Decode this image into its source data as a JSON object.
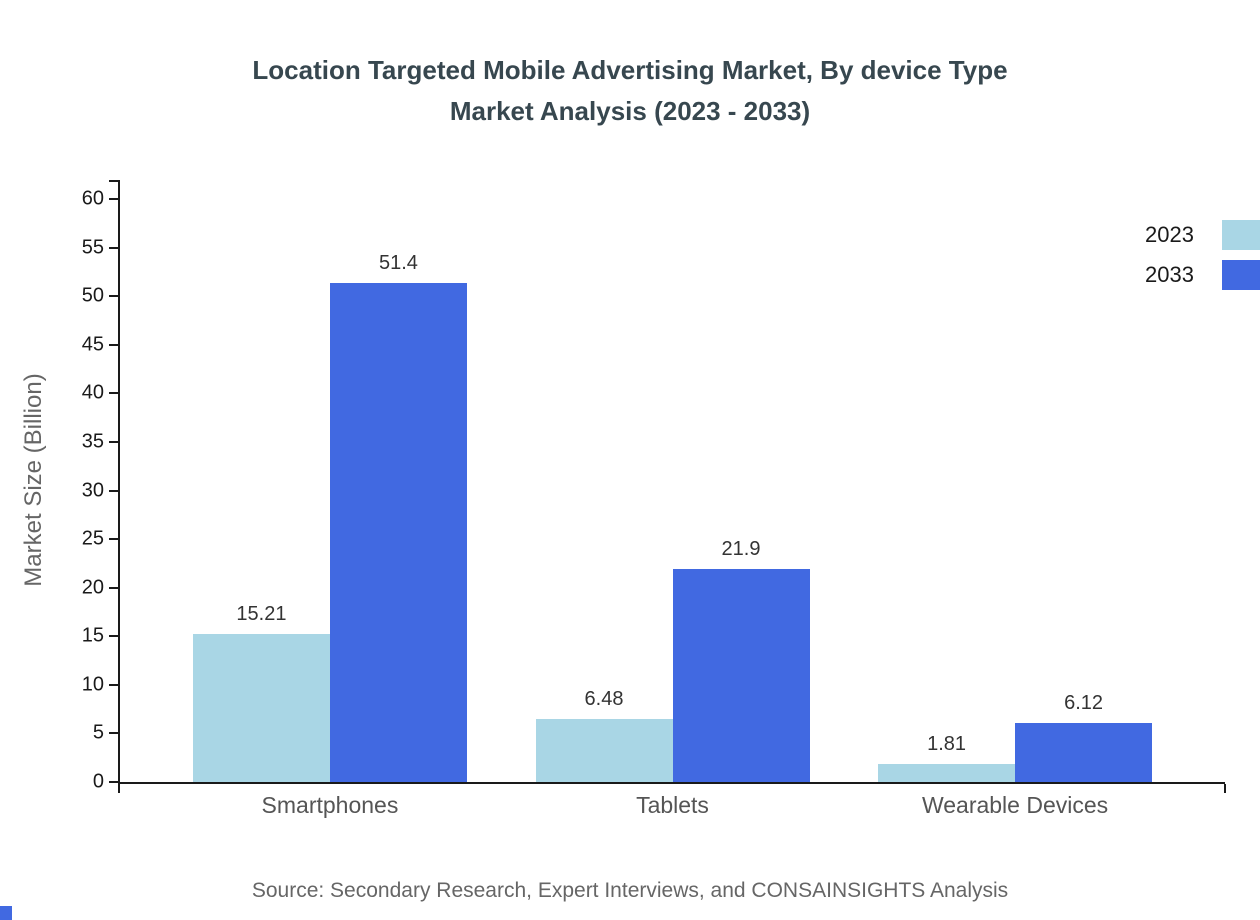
{
  "chart": {
    "title_line1": "Location Targeted Mobile Advertising Market, By device Type",
    "title_line2": "Market Analysis (2023 - 2033)",
    "ylabel": "Market Size (Billion)",
    "source": "Source: Secondary Research, Expert Interviews, and CONSAINSIGHTS Analysis"
  },
  "chart_data": {
    "type": "bar",
    "title": "Location Targeted Mobile Advertising Market, By device Type Market Analysis (2023 - 2033)",
    "categories": [
      "Smartphones",
      "Tablets",
      "Wearable Devices"
    ],
    "series": [
      {
        "name": "2023",
        "color": "#a9d6e5",
        "values": [
          15.21,
          6.48,
          1.81
        ]
      },
      {
        "name": "2033",
        "color": "#4169e1",
        "values": [
          51.4,
          21.9,
          6.12
        ]
      }
    ],
    "xlabel": "",
    "ylabel": "Market Size (Billion)",
    "ylim": [
      0,
      60
    ],
    "ytick_step": 5,
    "grid": false,
    "legend_position": "top-right",
    "source": "Source: Secondary Research, Expert Interviews, and CONSAINSIGHTS Analysis"
  }
}
